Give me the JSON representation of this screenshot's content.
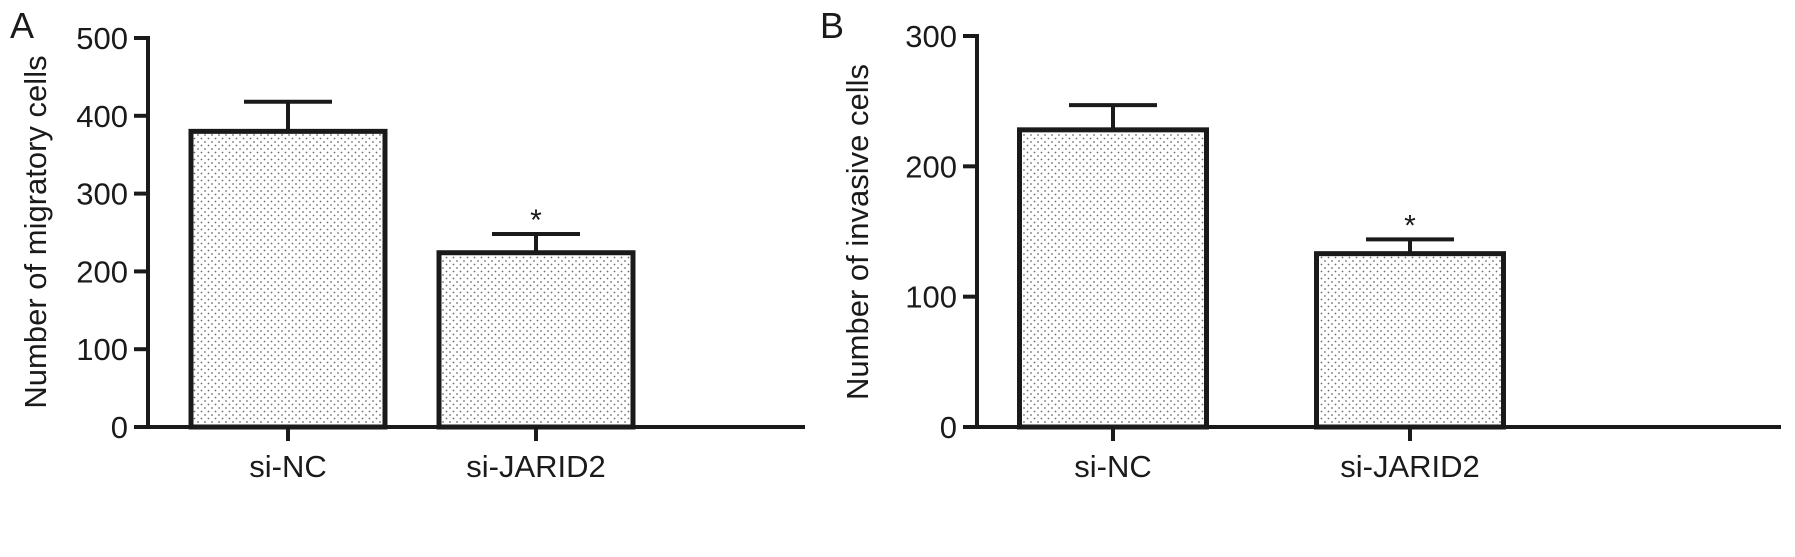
{
  "chart_data": [
    {
      "panel_label": "A",
      "type": "bar",
      "categories": [
        "si-NC",
        "si-JARID2"
      ],
      "values": [
        380,
        224
      ],
      "errors": [
        38,
        24
      ],
      "annotations": [
        "",
        "*"
      ],
      "ylabel": "Number of migratory cells",
      "xlabel": "",
      "ylim": [
        0,
        500
      ],
      "yticks": [
        0,
        100,
        200,
        300,
        400,
        500
      ],
      "grid": false
    },
    {
      "panel_label": "B",
      "type": "bar",
      "categories": [
        "si-NC",
        "si-JARID2"
      ],
      "values": [
        228,
        133
      ],
      "errors": [
        19,
        11
      ],
      "annotations": [
        "",
        "*"
      ],
      "ylabel": "Number of invasive cells",
      "xlabel": "",
      "ylim": [
        0,
        300
      ],
      "yticks": [
        0,
        100,
        200,
        300
      ],
      "grid": false
    }
  ],
  "style": {
    "bar_fill": "#ffffff",
    "bar_dots": "#6f6f6f",
    "stroke": "#1a1a1a"
  }
}
